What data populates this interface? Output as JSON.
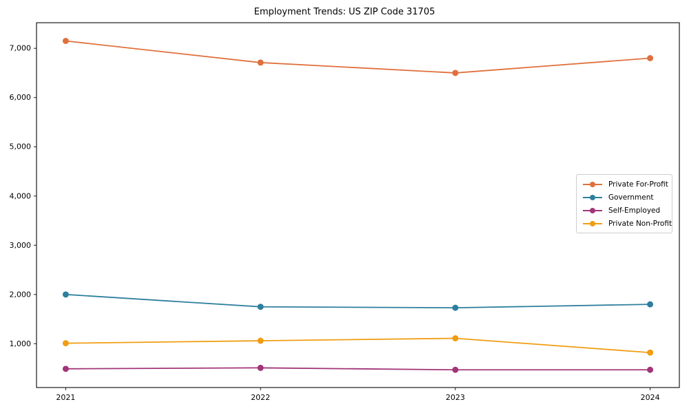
{
  "chart_data": {
    "type": "line",
    "title": "Employment Trends: US ZIP Code 31705",
    "x": [
      2021,
      2022,
      2023,
      2024
    ],
    "x_tick_labels": [
      "2021",
      "2022",
      "2023",
      "2024"
    ],
    "y_ticks": [
      1000,
      2000,
      3000,
      4000,
      5000,
      6000,
      7000
    ],
    "y_tick_labels": [
      "1,000",
      "2,000",
      "3,000",
      "4,000",
      "5,000",
      "6,000",
      "7,000"
    ],
    "xlim": [
      2020.85,
      2024.15
    ],
    "ylim": [
      110,
      7520
    ],
    "grid": false,
    "legend_position": "center right",
    "axis_color": "#1a1a1a",
    "series": [
      {
        "name": "Private For-Profit",
        "color": "#e0703d",
        "values": [
          7150,
          6710,
          6500,
          6800
        ]
      },
      {
        "name": "Government",
        "color": "#2e7f9e",
        "values": [
          2000,
          1750,
          1730,
          1800
        ]
      },
      {
        "name": "Self-Employed",
        "color": "#a23478",
        "values": [
          490,
          510,
          470,
          470
        ]
      },
      {
        "name": "Private Non-Profit",
        "color": "#f09d12",
        "values": [
          1010,
          1060,
          1110,
          820
        ]
      }
    ]
  }
}
